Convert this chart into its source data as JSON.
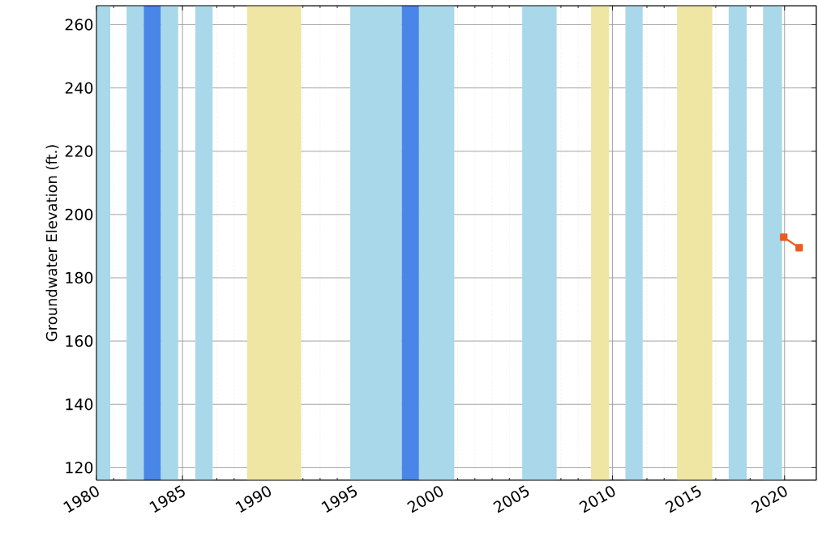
{
  "chart_data": {
    "type": "line",
    "ylabel": "Groundwater Elevation (ft.)",
    "xlim": [
      1980,
      2021.85
    ],
    "xticks": [
      1980,
      1985,
      1990,
      1995,
      2000,
      2005,
      2010,
      2015,
      2020
    ],
    "ylim": [
      116,
      266
    ],
    "yticks": [
      120,
      140,
      160,
      180,
      200,
      220,
      240,
      260
    ],
    "grid": true,
    "bands": [
      {
        "axis": "x",
        "from": 1980.0,
        "to": 1980.8,
        "color": "#a8d8ea"
      },
      {
        "axis": "x",
        "from": 1981.75,
        "to": 1982.75,
        "color": "#a8d8ea"
      },
      {
        "axis": "x",
        "from": 1982.75,
        "to": 1983.75,
        "color": "#4a86e8"
      },
      {
        "axis": "x",
        "from": 1983.75,
        "to": 1984.75,
        "color": "#a8d8ea"
      },
      {
        "axis": "x",
        "from": 1985.75,
        "to": 1986.75,
        "color": "#a8d8ea"
      },
      {
        "axis": "x",
        "from": 1988.75,
        "to": 1991.9,
        "color": "#eee6a2"
      },
      {
        "axis": "x",
        "from": 1994.75,
        "to": 1997.75,
        "color": "#a8d8ea"
      },
      {
        "axis": "x",
        "from": 1997.75,
        "to": 1998.75,
        "color": "#4a86e8"
      },
      {
        "axis": "x",
        "from": 1998.75,
        "to": 2000.8,
        "color": "#a8d8ea"
      },
      {
        "axis": "x",
        "from": 2004.75,
        "to": 2006.75,
        "color": "#a8d8ea"
      },
      {
        "axis": "x",
        "from": 2008.75,
        "to": 2009.8,
        "color": "#eee6a2"
      },
      {
        "axis": "x",
        "from": 2010.75,
        "to": 2011.75,
        "color": "#a8d8ea"
      },
      {
        "axis": "x",
        "from": 2013.75,
        "to": 2015.8,
        "color": "#eee6a2"
      },
      {
        "axis": "x",
        "from": 2016.75,
        "to": 2017.8,
        "color": "#a8d8ea"
      },
      {
        "axis": "x",
        "from": 2018.75,
        "to": 2019.85,
        "color": "#a8d8ea"
      }
    ],
    "series": [
      {
        "color": "#ee5a1e",
        "marker": "square",
        "x": [
          2019.95,
          2020.85
        ],
        "values": [
          192.8,
          189.5
        ]
      }
    ]
  }
}
